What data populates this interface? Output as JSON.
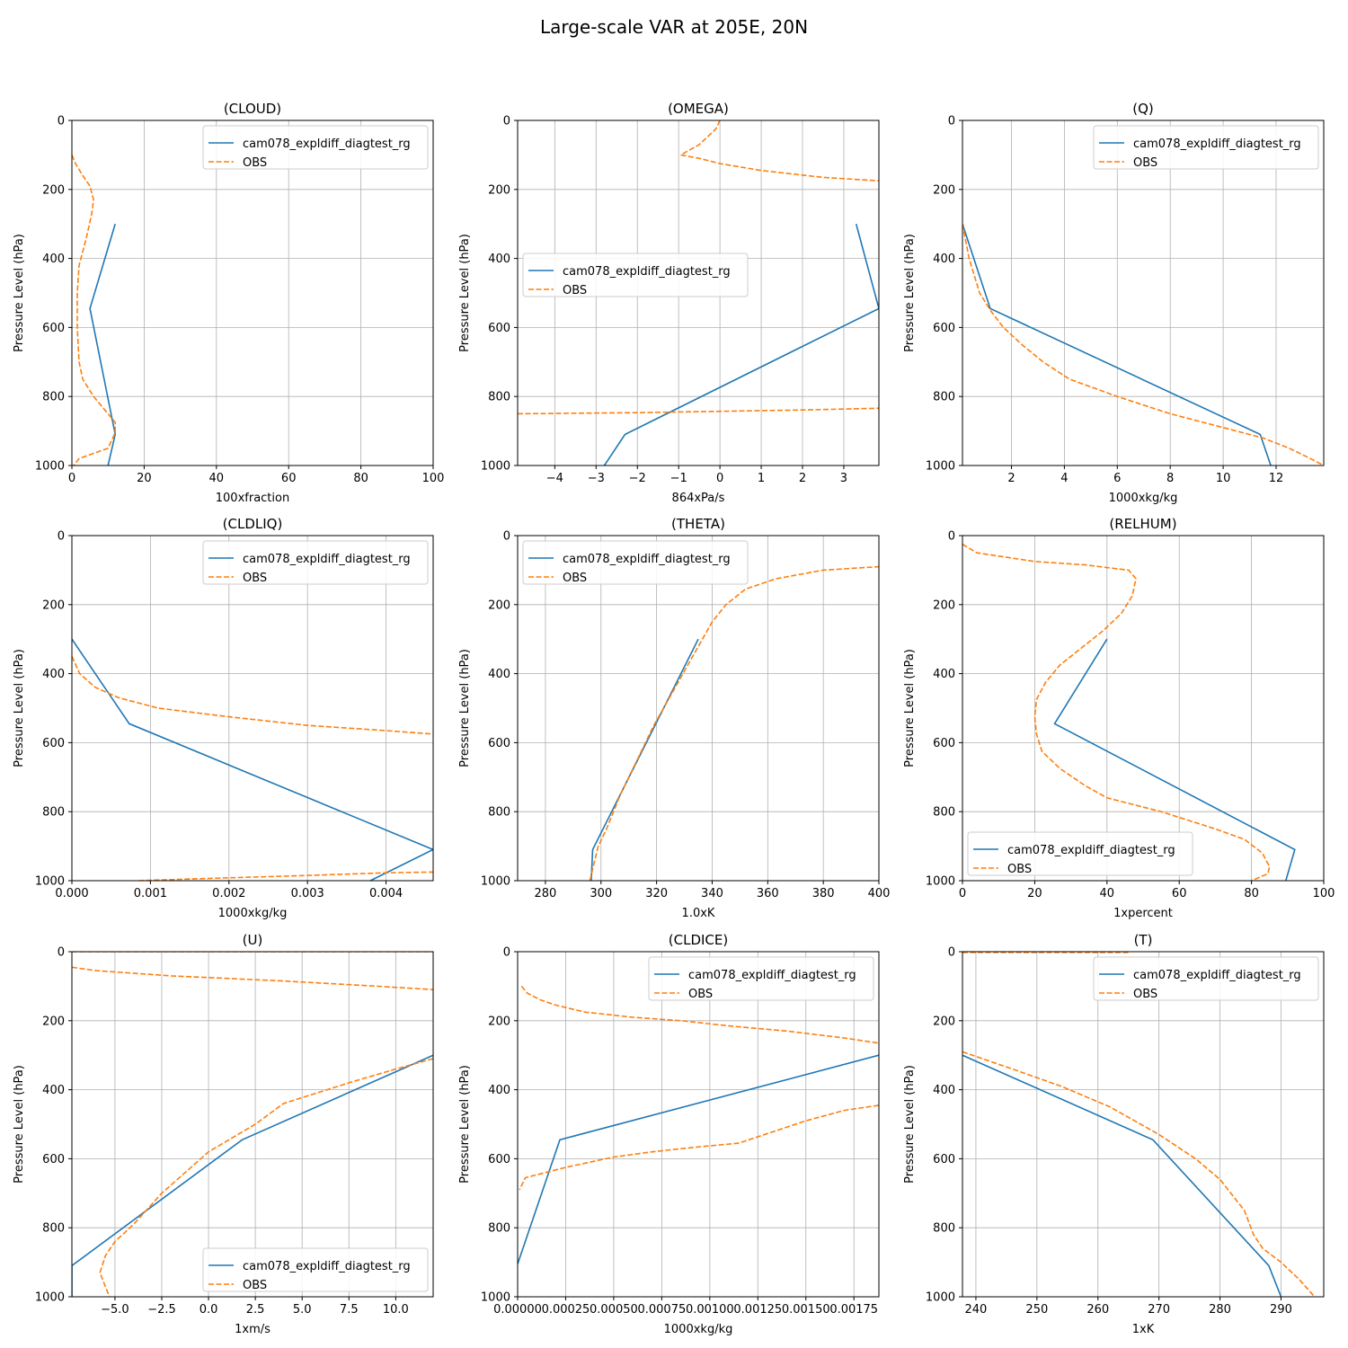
{
  "figure": {
    "title": "Large-scale VAR at 205E, 20N"
  },
  "colors": {
    "model": "#1f77b4",
    "obs": "#ff7f0e",
    "grid": "#b0b0b0",
    "legend_border": "#cccccc"
  },
  "chart_data": [
    {
      "type": "line",
      "title": "(CLOUD)",
      "xlabel": "100xfraction",
      "ylabel": "Pressure Level (hPa)",
      "xlim": [
        0,
        100
      ],
      "ylim": [
        1000,
        0
      ],
      "xticks": [
        0,
        20,
        40,
        60,
        80,
        100
      ],
      "xtick_labels": [
        "0",
        "20",
        "40",
        "60",
        "80",
        "100"
      ],
      "yticks": [
        0,
        200,
        400,
        600,
        800,
        1000
      ],
      "ytick_labels": [
        "0",
        "200",
        "400",
        "600",
        "800",
        "1000"
      ],
      "grid": true,
      "legend_position": "upper right",
      "series": [
        {
          "name": "cam078_expldiff_diagtest_rg",
          "style": "solid",
          "x": [
            12,
            5,
            12,
            10
          ],
          "y": [
            300,
            545,
            910,
            1000
          ]
        },
        {
          "name": "OBS",
          "style": "dashed",
          "x": [
            0,
            1,
            3,
            5,
            6,
            5.5,
            4,
            2,
            1.5,
            1.5,
            2,
            3,
            6,
            10,
            12,
            12,
            10,
            2,
            0.5
          ],
          "y": [
            100,
            125,
            160,
            190,
            230,
            270,
            340,
            420,
            500,
            600,
            700,
            750,
            800,
            850,
            875,
            905,
            950,
            980,
            1000
          ]
        }
      ]
    },
    {
      "type": "line",
      "title": "(OMEGA)",
      "xlabel": "864xPa/s",
      "ylabel": "Pressure Level (hPa)",
      "xlim": [
        -4.9,
        3.85
      ],
      "ylim": [
        1000,
        0
      ],
      "xticks": [
        -4,
        -3,
        -2,
        -1,
        0,
        1,
        2,
        3
      ],
      "xtick_labels": [
        "−4",
        "−3",
        "−2",
        "−1",
        "0",
        "1",
        "2",
        "3"
      ],
      "yticks": [
        0,
        200,
        400,
        600,
        800,
        1000
      ],
      "ytick_labels": [
        "0",
        "200",
        "400",
        "600",
        "800",
        "1000"
      ],
      "grid": true,
      "legend_position": "center left",
      "series": [
        {
          "name": "cam078_expldiff_diagtest_rg",
          "style": "solid",
          "x": [
            3.3,
            3.85,
            -2.3,
            -2.8
          ],
          "y": [
            300,
            545,
            910,
            1000
          ]
        },
        {
          "name": "OBS",
          "style": "dashed",
          "x": [
            0,
            -0.1,
            -0.5,
            -0.95,
            -0.5,
            0,
            1,
            2.5,
            3.85
          ],
          "y": [
            0,
            25,
            70,
            100,
            110,
            125,
            145,
            165,
            175
          ]
        },
        {
          "name": "OBS",
          "style": "dashed",
          "x": [
            -4.9,
            -2,
            0,
            2,
            3.85
          ],
          "y": [
            850,
            847,
            843,
            839,
            834
          ]
        }
      ]
    },
    {
      "type": "line",
      "title": "(Q)",
      "xlabel": "1000xkg/kg",
      "ylabel": "Pressure Level (hPa)",
      "xlim": [
        0.15,
        13.8
      ],
      "ylim": [
        1000,
        0
      ],
      "xticks": [
        2,
        4,
        6,
        8,
        10,
        12
      ],
      "xtick_labels": [
        "2",
        "4",
        "6",
        "8",
        "10",
        "12"
      ],
      "yticks": [
        0,
        200,
        400,
        600,
        800,
        1000
      ],
      "ytick_labels": [
        "0",
        "200",
        "400",
        "600",
        "800",
        "1000"
      ],
      "grid": true,
      "legend_position": "upper right",
      "series": [
        {
          "name": "cam078_expldiff_diagtest_rg",
          "style": "solid",
          "x": [
            0.15,
            1.2,
            11.4,
            11.8
          ],
          "y": [
            300,
            545,
            910,
            1000
          ]
        },
        {
          "name": "OBS",
          "style": "dashed",
          "x": [
            0.15,
            0.4,
            0.8,
            1.2,
            1.7,
            2.4,
            3.2,
            4.2,
            6,
            8,
            10,
            11.5,
            12.5,
            13.3,
            13.8
          ],
          "y": [
            300,
            400,
            500,
            550,
            600,
            650,
            700,
            750,
            800,
            850,
            890,
            920,
            950,
            980,
            1000
          ]
        }
      ]
    },
    {
      "type": "line",
      "title": "(CLDLIQ)",
      "xlabel": "1000xkg/kg",
      "ylabel": "Pressure Level (hPa)",
      "xlim": [
        0,
        0.0046
      ],
      "ylim": [
        1000,
        0
      ],
      "xticks": [
        0,
        0.001,
        0.002,
        0.003,
        0.004
      ],
      "xtick_labels": [
        "0.000",
        "0.001",
        "0.002",
        "0.003",
        "0.004"
      ],
      "yticks": [
        0,
        200,
        400,
        600,
        800,
        1000
      ],
      "ytick_labels": [
        "0",
        "200",
        "400",
        "600",
        "800",
        "1000"
      ],
      "grid": true,
      "legend_position": "upper right",
      "series": [
        {
          "name": "cam078_expldiff_diagtest_rg",
          "style": "solid",
          "x": [
            0,
            0.00073,
            0.0046,
            0.0038
          ],
          "y": [
            300,
            545,
            910,
            1000
          ]
        },
        {
          "name": "OBS",
          "style": "dashed",
          "x": [
            0,
            0.0001,
            0.0003,
            0.0006,
            0.0011,
            0.002,
            0.003,
            0.004,
            0.0046
          ],
          "y": [
            350,
            400,
            440,
            470,
            500,
            525,
            550,
            565,
            575
          ]
        },
        {
          "name": "OBS",
          "style": "dashed",
          "x": [
            0.00085,
            0.0015,
            0.003,
            0.004,
            0.0046
          ],
          "y": [
            1000,
            995,
            985,
            977,
            975
          ]
        }
      ]
    },
    {
      "type": "line",
      "title": "(THETA)",
      "xlabel": "1.0xK",
      "ylabel": "Pressure Level (hPa)",
      "xlim": [
        270,
        400
      ],
      "ylim": [
        1000,
        0
      ],
      "xticks": [
        280,
        300,
        320,
        340,
        360,
        380,
        400
      ],
      "xtick_labels": [
        "280",
        "300",
        "320",
        "340",
        "360",
        "380",
        "400"
      ],
      "yticks": [
        0,
        200,
        400,
        600,
        800,
        1000
      ],
      "ytick_labels": [
        "0",
        "200",
        "400",
        "600",
        "800",
        "1000"
      ],
      "grid": true,
      "legend_position": "upper left",
      "series": [
        {
          "name": "cam078_expldiff_diagtest_rg",
          "style": "solid",
          "x": [
            335,
            297,
            296.5
          ],
          "y": [
            300,
            910,
            1000
          ]
        },
        {
          "name": "OBS",
          "style": "dashed",
          "x": [
            296,
            297.5,
            299,
            302,
            307,
            313,
            319,
            326,
            333,
            340,
            345,
            352,
            363,
            380,
            400
          ],
          "y": [
            1000,
            950,
            900,
            850,
            750,
            650,
            550,
            450,
            350,
            250,
            200,
            155,
            125,
            100,
            90
          ]
        }
      ]
    },
    {
      "type": "line",
      "title": "(RELHUM)",
      "xlabel": "1xpercent",
      "ylabel": "Pressure Level (hPa)",
      "xlim": [
        0,
        100
      ],
      "ylim": [
        1000,
        0
      ],
      "xticks": [
        0,
        20,
        40,
        60,
        80,
        100
      ],
      "xtick_labels": [
        "0",
        "20",
        "40",
        "60",
        "80",
        "100"
      ],
      "yticks": [
        0,
        200,
        400,
        600,
        800,
        1000
      ],
      "ytick_labels": [
        "0",
        "200",
        "400",
        "600",
        "800",
        "1000"
      ],
      "grid": true,
      "legend_position": "lower left",
      "series": [
        {
          "name": "cam078_expldiff_diagtest_rg",
          "style": "solid",
          "x": [
            40,
            25.5,
            92,
            89.5
          ],
          "y": [
            300,
            545,
            910,
            1000
          ]
        },
        {
          "name": "OBS",
          "style": "dashed",
          "x": [
            0,
            4,
            20,
            34,
            42,
            46,
            48,
            47,
            44,
            39,
            33,
            27,
            23,
            20.5,
            20,
            20.5,
            22,
            27,
            34,
            40,
            55,
            70,
            78,
            83,
            85,
            84.5,
            80
          ],
          "y": [
            25,
            50,
            75,
            85,
            95,
            100,
            125,
            175,
            225,
            275,
            325,
            375,
            425,
            475,
            525,
            575,
            625,
            675,
            725,
            760,
            800,
            850,
            880,
            920,
            960,
            980,
            1000
          ]
        }
      ]
    },
    {
      "type": "line",
      "title": "(U)",
      "xlabel": "1xm/s",
      "ylabel": "Pressure Level (hPa)",
      "xlim": [
        -7.3,
        12
      ],
      "ylim": [
        1000,
        0
      ],
      "xticks": [
        -5,
        -2.5,
        0,
        2.5,
        5,
        7.5,
        10
      ],
      "xtick_labels": [
        "−5.0",
        "−2.5",
        "0.0",
        "2.5",
        "5.0",
        "7.5",
        "10.0"
      ],
      "yticks": [
        0,
        200,
        400,
        600,
        800,
        1000
      ],
      "ytick_labels": [
        "0",
        "200",
        "400",
        "600",
        "800",
        "1000"
      ],
      "grid": true,
      "legend_position": "lower right",
      "series": [
        {
          "name": "cam078_expldiff_diagtest_rg",
          "style": "solid",
          "x": [
            12,
            1.8,
            -7.3,
            -7.3
          ],
          "y": [
            300,
            545,
            910,
            1000
          ]
        },
        {
          "name": "OBS",
          "style": "dashed",
          "x": [
            -7.3,
            12
          ],
          "y": [
            0,
            0
          ]
        },
        {
          "name": "OBS",
          "style": "dashed",
          "x": [
            -7.3,
            -6,
            -2,
            4,
            9,
            12
          ],
          "y": [
            45,
            55,
            70,
            85,
            100,
            110
          ]
        },
        {
          "name": "OBS",
          "style": "dashed",
          "x": [
            12,
            10,
            7.5,
            4,
            2.5,
            0,
            -2.5,
            -4,
            -5,
            -5.5,
            -5.8,
            -5.3
          ],
          "y": [
            310,
            340,
            380,
            440,
            500,
            580,
            700,
            790,
            840,
            880,
            930,
            1000
          ]
        }
      ]
    },
    {
      "type": "line",
      "title": "(CLDICE)",
      "xlabel": "1000xkg/kg",
      "ylabel": "Pressure Level (hPa)",
      "xlim": [
        0,
        0.00188
      ],
      "ylim": [
        1000,
        0
      ],
      "xticks": [
        0,
        0.00025,
        0.0005,
        0.00075,
        0.001,
        0.00125,
        0.0015,
        0.00175
      ],
      "xtick_labels": [
        "0.00000",
        "0.00025",
        "0.00050",
        "0.00075",
        "0.00100",
        "0.00125",
        "0.00150",
        "0.00175"
      ],
      "yticks": [
        0,
        200,
        400,
        600,
        800,
        1000
      ],
      "ytick_labels": [
        "0",
        "200",
        "400",
        "600",
        "800",
        "1000"
      ],
      "grid": true,
      "legend_position": "upper right",
      "series": [
        {
          "name": "cam078_expldiff_diagtest_rg",
          "style": "solid",
          "x": [
            0.00188,
            0.00022,
            0
          ],
          "y": [
            300,
            545,
            905
          ]
        },
        {
          "name": "OBS",
          "style": "dashed",
          "x": [
            2e-05,
            5e-05,
            0.00012,
            0.0002,
            0.00035,
            0.0006,
            0.00085,
            0.0011,
            0.0014,
            0.0017,
            0.00188
          ],
          "y": [
            100,
            120,
            140,
            155,
            175,
            190,
            200,
            215,
            230,
            250,
            265
          ]
        },
        {
          "name": "OBS",
          "style": "dashed",
          "x": [
            0.00188,
            0.0017,
            0.0015,
            0.00115,
            0.00095,
            0.0007,
            0.0005,
            0.00025,
            4e-05,
            1e-05
          ],
          "y": [
            445,
            460,
            490,
            555,
            565,
            580,
            595,
            625,
            655,
            690
          ]
        }
      ]
    },
    {
      "type": "line",
      "title": "(T)",
      "xlabel": "1xK",
      "ylabel": "Pressure Level (hPa)",
      "xlim": [
        237.8,
        297
      ],
      "ylim": [
        1000,
        0
      ],
      "xticks": [
        240,
        250,
        260,
        270,
        280,
        290
      ],
      "xtick_labels": [
        "240",
        "250",
        "260",
        "270",
        "280",
        "290"
      ],
      "yticks": [
        0,
        200,
        400,
        600,
        800,
        1000
      ],
      "ytick_labels": [
        "0",
        "200",
        "400",
        "600",
        "800",
        "1000"
      ],
      "grid": true,
      "legend_position": "upper right",
      "series": [
        {
          "name": "cam078_expldiff_diagtest_rg",
          "style": "solid",
          "x": [
            237.8,
            269,
            288,
            290
          ],
          "y": [
            300,
            545,
            910,
            1000
          ]
        },
        {
          "name": "OBS",
          "style": "dashed",
          "x": [
            237.8,
            265
          ],
          "y": [
            2,
            2
          ]
        },
        {
          "name": "OBS",
          "style": "dashed",
          "x": [
            237.8,
            246,
            254,
            262,
            270,
            276,
            280,
            284,
            285.5,
            287,
            290,
            293,
            295.5
          ],
          "y": [
            290,
            340,
            390,
            450,
            530,
            600,
            660,
            750,
            820,
            860,
            900,
            950,
            1000
          ]
        }
      ]
    }
  ]
}
